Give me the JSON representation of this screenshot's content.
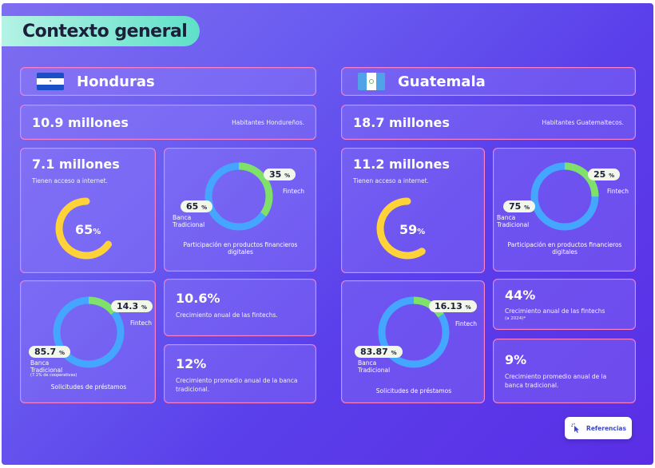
{
  "header": {
    "title": "Contexto general"
  },
  "colors": {
    "green": "#7fe06a",
    "blue": "#45a6ff",
    "yellow": "#ffd23a",
    "card_border": "#ff7fc8"
  },
  "honduras": {
    "name": "Honduras",
    "flag_icon": "honduras-flag-icon",
    "population_value": "10.9 millones",
    "population_label": "Habitantes Hondureños.",
    "internet_value": "7.1 millones",
    "internet_label": "Tienen acceso a internet.",
    "internet_pct": 65,
    "internet_pct_label": "65",
    "internet_pct_unit": "%",
    "digital": {
      "fintech_pct": 35,
      "fintech_pct_label": "35",
      "fintech_label": "Fintech",
      "bank_pct": 65,
      "bank_pct_label": "65",
      "bank_label": "Banca Tradicional",
      "caption": "Participación en productos financieros digitales"
    },
    "loans": {
      "fintech_pct": 14.3,
      "fintech_pct_label": "14.3",
      "fintech_label": "Fintech",
      "bank_pct": 85.7,
      "bank_pct_label": "85.7",
      "bank_label": "Banca Tradicional",
      "bank_note": "(7.1% de cooperativas)",
      "caption": "Solicitudes de préstamos"
    },
    "fintech_growth_value": "10.6%",
    "fintech_growth_label": "Crecimiento anual de las fintechs.",
    "bank_growth_value": "12%",
    "bank_growth_label": "Crecimiento promedio anual de la banca tradicional."
  },
  "guatemala": {
    "name": "Guatemala",
    "flag_icon": "guatemala-flag-icon",
    "population_value": "18.7 millones",
    "population_label": "Habitantes Guatemaltecos.",
    "internet_value": "11.2 millones",
    "internet_label": "Tienen acceso a internet.",
    "internet_pct": 59,
    "internet_pct_label": "59",
    "internet_pct_unit": "%",
    "digital": {
      "fintech_pct": 25,
      "fintech_pct_label": "25",
      "fintech_label": "Fintech",
      "bank_pct": 75,
      "bank_pct_label": "75",
      "bank_label": "Banca Tradicional",
      "caption": "Participación en productos financieros digitales"
    },
    "loans": {
      "fintech_pct": 16.13,
      "fintech_pct_label": "16.13",
      "fintech_label": "Fintech",
      "bank_pct": 83.87,
      "bank_pct_label": "83.87",
      "bank_label": "Banca Tradicional",
      "caption": "Solicitudes de préstamos"
    },
    "fintech_growth_value": "44%",
    "fintech_growth_label": "Crecimiento anual de las fintechs",
    "fintech_growth_note": "(a 2024)*",
    "bank_growth_value": "9%",
    "bank_growth_label": "Crecimiento promedio anual de la banca tradicional."
  },
  "references": {
    "label": "Referencias",
    "icon": "pointer-click-icon"
  },
  "pct_symbol": "%"
}
